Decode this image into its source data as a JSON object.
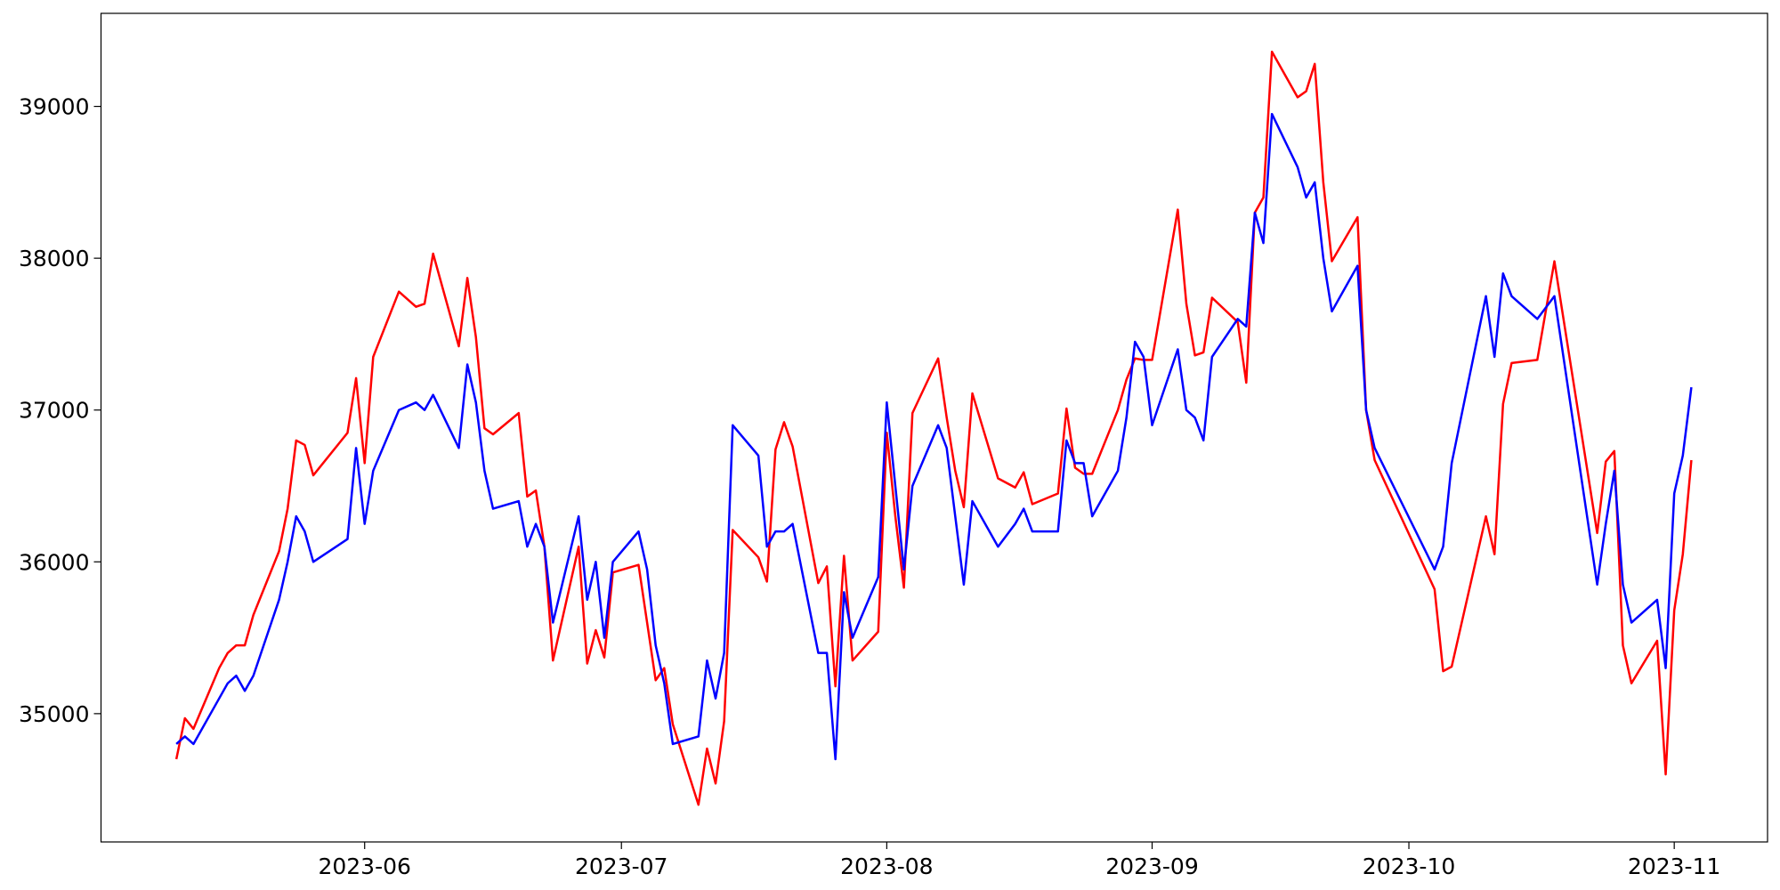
{
  "chart_data": {
    "type": "line",
    "x": [
      19487,
      19488,
      19489,
      19492,
      19493,
      19494,
      19495,
      19496,
      19499,
      19500,
      19501,
      19502,
      19503,
      19507,
      19508,
      19509,
      19510,
      19513,
      19515,
      19516,
      19517,
      19520,
      19521,
      19522,
      19523,
      19524,
      19527,
      19528,
      19529,
      19530,
      19531,
      19534,
      19535,
      19536,
      19537,
      19538,
      19541,
      19542,
      19543,
      19544,
      19545,
      19548,
      19549,
      19550,
      19551,
      19552,
      19555,
      19556,
      19557,
      19558,
      19559,
      19562,
      19563,
      19564,
      19565,
      19566,
      19569,
      19570,
      19571,
      19572,
      19573,
      19576,
      19577,
      19578,
      19579,
      19580,
      19583,
      19585,
      19586,
      19587,
      19590,
      19591,
      19592,
      19593,
      19594,
      19597,
      19598,
      19599,
      19600,
      19601,
      19604,
      19605,
      19606,
      19607,
      19608,
      19611,
      19612,
      19613,
      19614,
      19615,
      19618,
      19619,
      19620,
      19621,
      19622,
      19625,
      19626,
      19627,
      19634,
      19635,
      19636,
      19640,
      19641,
      19642,
      19643,
      19646,
      19648,
      19653,
      19654,
      19655,
      19656,
      19657,
      19660,
      19661,
      19662,
      19663,
      19664
    ],
    "series": [
      {
        "color": "#ff0000",
        "values": [
          34700,
          34970,
          34900,
          35300,
          35400,
          35450,
          35450,
          35650,
          36070,
          36350,
          36800,
          36770,
          36570,
          36850,
          37210,
          36650,
          37350,
          37780,
          37680,
          37700,
          38030,
          37420,
          37870,
          37480,
          36880,
          36840,
          36980,
          36430,
          36470,
          36100,
          35350,
          36100,
          35330,
          35550,
          35370,
          35930,
          35980,
          35600,
          35220,
          35300,
          34930,
          34400,
          34770,
          34540,
          34950,
          36210,
          36030,
          35870,
          36740,
          36920,
          36760,
          35860,
          35970,
          35180,
          36040,
          35350,
          35540,
          36850,
          36300,
          35830,
          36980,
          37340,
          36950,
          36600,
          36360,
          37110,
          36550,
          36490,
          36590,
          36380,
          36450,
          37010,
          36620,
          36580,
          36580,
          37000,
          37200,
          37340,
          37330,
          37330,
          38320,
          37700,
          37360,
          37380,
          37740,
          37580,
          37180,
          38300,
          38400,
          39360,
          39060,
          39100,
          39280,
          38500,
          37980,
          38270,
          37000,
          36670,
          35820,
          35280,
          35310,
          36300,
          36050,
          37040,
          37310,
          37330,
          37980,
          36190,
          36660,
          36730,
          35450,
          35200,
          35480,
          34600,
          35680,
          36050,
          36670
        ]
      },
      {
        "color": "#0000ff",
        "values": [
          34800,
          34850,
          34800,
          35100,
          35200,
          35250,
          35150,
          35250,
          35750,
          36000,
          36300,
          36200,
          36000,
          36150,
          36750,
          36250,
          36600,
          37000,
          37050,
          37000,
          37100,
          36750,
          37300,
          37050,
          36600,
          36350,
          36400,
          36100,
          36250,
          36100,
          35600,
          36300,
          35750,
          36000,
          35500,
          36000,
          36200,
          35950,
          35450,
          35200,
          34800,
          34850,
          35350,
          35100,
          35400,
          36900,
          36700,
          36100,
          36200,
          36200,
          36250,
          35400,
          35400,
          34700,
          35800,
          35500,
          35900,
          37050,
          36500,
          35950,
          36500,
          36900,
          36750,
          36300,
          35850,
          36400,
          36100,
          36250,
          36350,
          36200,
          36200,
          36800,
          36650,
          36650,
          36300,
          36600,
          36950,
          37450,
          37350,
          36900,
          37400,
          37000,
          36950,
          36800,
          37350,
          37600,
          37550,
          38300,
          38100,
          38950,
          38600,
          38400,
          38500,
          38000,
          37650,
          37950,
          37000,
          36750,
          35950,
          36100,
          36650,
          37750,
          37350,
          37900,
          37750,
          37600,
          37750,
          35850,
          36250,
          36600,
          35850,
          35600,
          35750,
          35300,
          36450,
          36700,
          37150
        ]
      }
    ],
    "xlim": [
      19478.2,
      19672.9
    ],
    "xticks": [
      {
        "value": 19509,
        "label": "2023-06"
      },
      {
        "value": 19539,
        "label": "2023-07"
      },
      {
        "value": 19570,
        "label": "2023-08"
      },
      {
        "value": 19601,
        "label": "2023-09"
      },
      {
        "value": 19631,
        "label": "2023-10"
      },
      {
        "value": 19662,
        "label": "2023-11"
      }
    ],
    "ylim": [
      34155,
      39613
    ],
    "yticks": [
      35000,
      36000,
      37000,
      38000,
      39000
    ],
    "grid": false
  }
}
